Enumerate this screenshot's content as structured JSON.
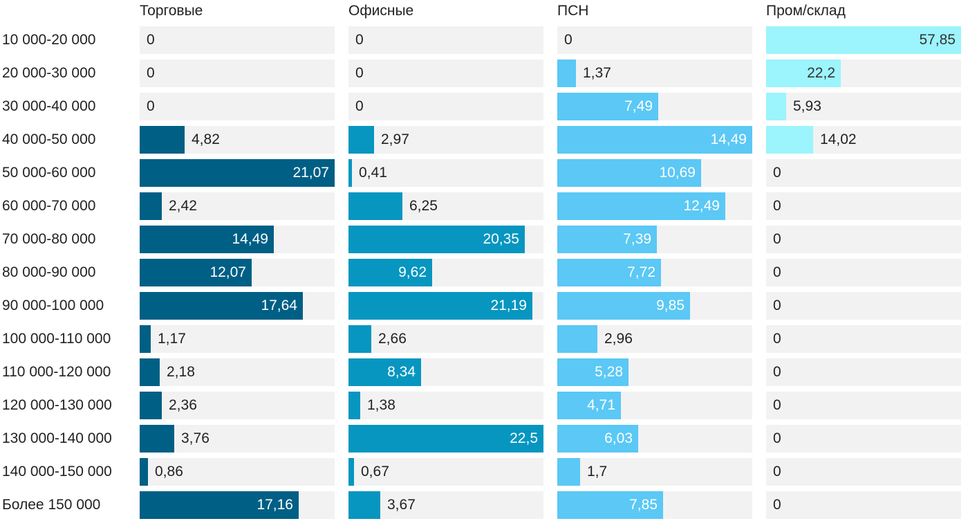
{
  "chart_data": {
    "type": "bar",
    "orientation": "horizontal",
    "layout": "small-multiples",
    "categories": [
      "10 000-20 000",
      "20 000-30 000",
      "30 000-40 000",
      "40 000-50 000",
      "50 000-60 000",
      "60 000-70 000",
      "70 000-80 000",
      "80 000-90 000",
      "90 000-100 000",
      "100 000-110 000",
      "110 000-120 000",
      "120 000-130 000",
      "130 000-140 000",
      "140 000-150 000",
      "Более 150 000"
    ],
    "series": [
      {
        "name": "Торговые",
        "color": "#005f85",
        "values": [
          0,
          0,
          0,
          4.82,
          21.07,
          2.42,
          14.49,
          12.07,
          17.64,
          1.17,
          2.18,
          2.36,
          3.76,
          0.86,
          17.16
        ],
        "labels": [
          "0",
          "0",
          "0",
          "4,82",
          "21,07",
          "2,42",
          "14,49",
          "12,07",
          "17,64",
          "1,17",
          "2,18",
          "2,36",
          "3,76",
          "0,86",
          "17,16"
        ],
        "xmax": 21.07
      },
      {
        "name": "Офисные",
        "color": "#0796c0",
        "values": [
          0,
          0,
          0,
          2.97,
          0.41,
          6.25,
          20.35,
          9.62,
          21.19,
          2.66,
          8.34,
          1.38,
          22.5,
          0.67,
          3.67
        ],
        "labels": [
          "0",
          "0",
          "0",
          "2,97",
          "0,41",
          "6,25",
          "20,35",
          "9,62",
          "21,19",
          "2,66",
          "8,34",
          "1,38",
          "22,5",
          "0,67",
          "3,67"
        ],
        "xmax": 22.5
      },
      {
        "name": "ПСН",
        "color": "#5bc8f5",
        "values": [
          0,
          1.37,
          7.49,
          14.49,
          10.69,
          12.49,
          7.39,
          7.72,
          9.85,
          2.96,
          5.28,
          4.71,
          6.03,
          1.7,
          7.85
        ],
        "labels": [
          "0",
          "1,37",
          "7,49",
          "14,49",
          "10,69",
          "12,49",
          "7,39",
          "7,72",
          "9,85",
          "2,96",
          "5,28",
          "4,71",
          "6,03",
          "1,7",
          "7,85"
        ],
        "xmax": 14.49
      },
      {
        "name": "Пром/склад",
        "color": "#9cf4fc",
        "values": [
          57.85,
          22.2,
          5.93,
          14.02,
          0,
          0,
          0,
          0,
          0,
          0,
          0,
          0,
          0,
          0,
          0
        ],
        "labels": [
          "57,85",
          "22,2",
          "5,93",
          "14,02",
          "0",
          "0",
          "0",
          "0",
          "0",
          "0",
          "0",
          "0",
          "0",
          "0",
          "0"
        ],
        "xmax": 57.85
      }
    ],
    "title": "",
    "xlabel": "",
    "ylabel": "",
    "grid": false,
    "legend": "none"
  }
}
